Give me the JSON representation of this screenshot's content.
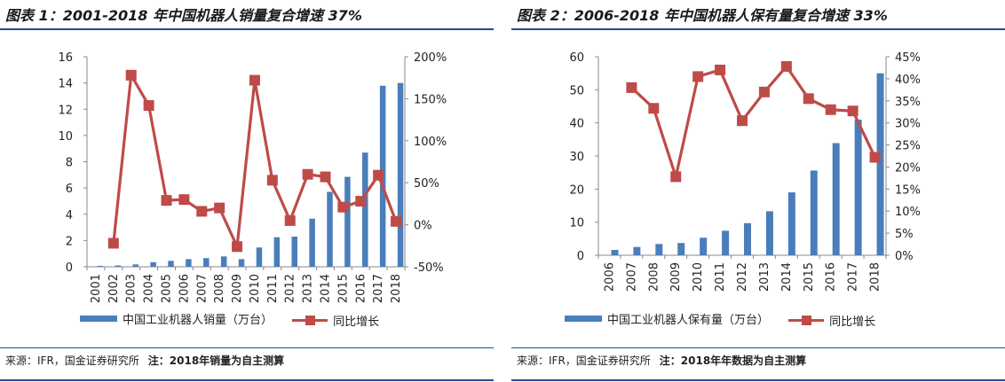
{
  "colors": {
    "bar": "#4a7ebb",
    "line": "#be4b48",
    "rule": "#1f4f8f"
  },
  "panels": [
    {
      "title": "图表 1：2001-2018 年中国机器人销量复合增速 37%",
      "source": "来源：IFR，国金证券研究所",
      "note": "注：2018年销量为自主测算",
      "legend_bar": "中国工业机器人销量（万台）",
      "legend_line": "同比增长"
    },
    {
      "title": "图表 2：2006-2018 年中国机器人保有量复合增速 33%",
      "source": "来源：IFR，国金证券研究所",
      "note": "注：2018年年数据为自主测算",
      "legend_bar": "中国工业机器人保有量（万台）",
      "legend_line": "同比增长"
    }
  ],
  "chart_data": [
    {
      "type": "bar",
      "categories": [
        "2001",
        "2002",
        "2003",
        "2004",
        "2005",
        "2006",
        "2007",
        "2008",
        "2009",
        "2010",
        "2011",
        "2012",
        "2013",
        "2014",
        "2015",
        "2016",
        "2017",
        "2018"
      ],
      "series": [
        {
          "name": "中国工业机器人销量（万台）",
          "type": "bar",
          "axis": "left",
          "values": [
            0.07,
            0.1,
            0.18,
            0.35,
            0.45,
            0.58,
            0.66,
            0.79,
            0.58,
            1.47,
            2.25,
            2.3,
            3.66,
            5.71,
            6.85,
            8.7,
            13.79,
            14.0
          ]
        },
        {
          "name": "同比增长",
          "type": "line",
          "axis": "right",
          "values": [
            null,
            -22,
            178,
            142,
            29,
            30,
            16,
            20,
            -26,
            172,
            53,
            5,
            60,
            57,
            21,
            28,
            59,
            4
          ]
        }
      ],
      "ylim_left": [
        0,
        16
      ],
      "yticks_left": [
        "0",
        "2",
        "4",
        "6",
        "8",
        "10",
        "12",
        "14",
        "16"
      ],
      "ylim_right": [
        -50,
        200
      ],
      "yticks_right": [
        "-50%",
        "0%",
        "50%",
        "100%",
        "150%",
        "200%"
      ],
      "grid": false,
      "legend": "bottom"
    },
    {
      "type": "bar",
      "categories": [
        "2006",
        "2007",
        "2008",
        "2009",
        "2010",
        "2011",
        "2012",
        "2013",
        "2014",
        "2015",
        "2016",
        "2017",
        "2018"
      ],
      "series": [
        {
          "name": "中国工业机器人保有量（万台）",
          "type": "bar",
          "axis": "left",
          "values": [
            1.6,
            2.5,
            3.4,
            3.7,
            5.3,
            7.4,
            9.7,
            13.3,
            19.0,
            25.6,
            33.9,
            41.0,
            55.0
          ]
        },
        {
          "name": "同比增长",
          "type": "line",
          "axis": "right",
          "values": [
            null,
            38.0,
            33.3,
            17.8,
            40.5,
            42.0,
            30.5,
            37.0,
            42.8,
            35.5,
            33.0,
            32.7,
            22.2
          ]
        }
      ],
      "ylim_left": [
        0,
        60
      ],
      "yticks_left": [
        "0",
        "10",
        "20",
        "30",
        "40",
        "50",
        "60"
      ],
      "ylim_right": [
        0,
        45
      ],
      "yticks_right": [
        "0%",
        "5%",
        "10%",
        "15%",
        "20%",
        "25%",
        "30%",
        "35%",
        "40%",
        "45%"
      ],
      "grid": false,
      "legend": "bottom"
    }
  ]
}
